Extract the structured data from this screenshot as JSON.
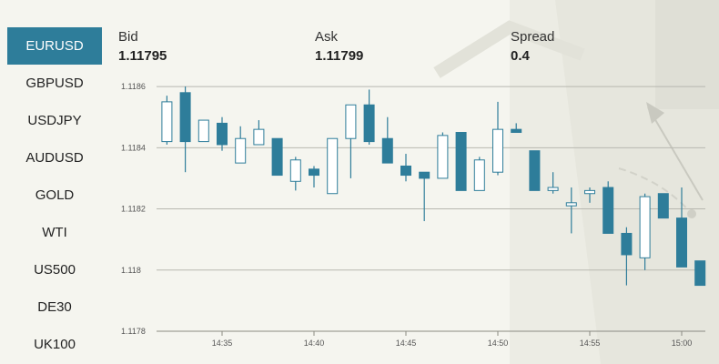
{
  "symbols": [
    {
      "label": "EURUSD",
      "active": true
    },
    {
      "label": "GBPUSD",
      "active": false
    },
    {
      "label": "USDJPY",
      "active": false
    },
    {
      "label": "AUDUSD",
      "active": false
    },
    {
      "label": "GOLD",
      "active": false
    },
    {
      "label": "WTI",
      "active": false
    },
    {
      "label": "US500",
      "active": false
    },
    {
      "label": "DE30",
      "active": false
    },
    {
      "label": "UK100",
      "active": false
    }
  ],
  "quote": {
    "bid_label": "Bid",
    "bid_value": "1.11795",
    "ask_label": "Ask",
    "ask_value": "1.11799",
    "spread_label": "Spread",
    "spread_value": "0.4"
  },
  "colors": {
    "accent": "#2e7d9a",
    "bullish_fill": "#ffffff",
    "bearish_fill": "#2e7d9a",
    "grid": "#b8b8b0"
  },
  "chart_data": {
    "type": "candlestick",
    "title": "",
    "y_ticks": [
      1.1178,
      1.118,
      1.1182,
      1.1184,
      1.1186
    ],
    "y_tick_labels": [
      "1.1178",
      "1.118",
      "1.1182",
      "1.1184",
      "1.1186"
    ],
    "ylim": [
      1.1178,
      1.11863
    ],
    "x_ticks": [
      "14:35",
      "14:40",
      "14:45",
      "14:50",
      "14:55",
      "15:00"
    ],
    "x_range_minutes": [
      "14:31",
      "15:01"
    ],
    "candles": [
      {
        "t": "14:32",
        "o": 1.11842,
        "h": 1.11857,
        "l": 1.11841,
        "c": 1.11855
      },
      {
        "t": "14:33",
        "o": 1.11858,
        "h": 1.1186,
        "l": 1.11832,
        "c": 1.11842
      },
      {
        "t": "14:34",
        "o": 1.11842,
        "h": 1.11849,
        "l": 1.11842,
        "c": 1.11849
      },
      {
        "t": "14:35",
        "o": 1.11848,
        "h": 1.1185,
        "l": 1.11839,
        "c": 1.11841
      },
      {
        "t": "14:36",
        "o": 1.11835,
        "h": 1.11847,
        "l": 1.11835,
        "c": 1.11843
      },
      {
        "t": "14:37",
        "o": 1.11841,
        "h": 1.11849,
        "l": 1.11841,
        "c": 1.11846
      },
      {
        "t": "14:38",
        "o": 1.11843,
        "h": 1.11843,
        "l": 1.11831,
        "c": 1.11831
      },
      {
        "t": "14:39",
        "o": 1.11829,
        "h": 1.11837,
        "l": 1.11826,
        "c": 1.11836
      },
      {
        "t": "14:40",
        "o": 1.11833,
        "h": 1.11834,
        "l": 1.11827,
        "c": 1.11831
      },
      {
        "t": "14:41",
        "o": 1.11825,
        "h": 1.11843,
        "l": 1.11825,
        "c": 1.11843
      },
      {
        "t": "14:42",
        "o": 1.11843,
        "h": 1.11854,
        "l": 1.1183,
        "c": 1.11854
      },
      {
        "t": "14:43",
        "o": 1.11854,
        "h": 1.11859,
        "l": 1.11841,
        "c": 1.11842
      },
      {
        "t": "14:44",
        "o": 1.11843,
        "h": 1.1185,
        "l": 1.11835,
        "c": 1.11835
      },
      {
        "t": "14:45",
        "o": 1.11834,
        "h": 1.11838,
        "l": 1.11829,
        "c": 1.11831
      },
      {
        "t": "14:46",
        "o": 1.11832,
        "h": 1.11832,
        "l": 1.11816,
        "c": 1.1183
      },
      {
        "t": "14:47",
        "o": 1.1183,
        "h": 1.11845,
        "l": 1.1183,
        "c": 1.11844
      },
      {
        "t": "14:48",
        "o": 1.11845,
        "h": 1.11845,
        "l": 1.11826,
        "c": 1.11826
      },
      {
        "t": "14:49",
        "o": 1.11826,
        "h": 1.11837,
        "l": 1.11826,
        "c": 1.11836
      },
      {
        "t": "14:50",
        "o": 1.11832,
        "h": 1.11855,
        "l": 1.11831,
        "c": 1.11846
      },
      {
        "t": "14:51",
        "o": 1.11846,
        "h": 1.11848,
        "l": 1.11845,
        "c": 1.11845
      },
      {
        "t": "14:52",
        "o": 1.11839,
        "h": 1.11839,
        "l": 1.11826,
        "c": 1.11826
      },
      {
        "t": "14:53",
        "o": 1.11826,
        "h": 1.11832,
        "l": 1.11825,
        "c": 1.11827
      },
      {
        "t": "14:54",
        "o": 1.11821,
        "h": 1.11827,
        "l": 1.11812,
        "c": 1.11822
      },
      {
        "t": "14:55",
        "o": 1.11825,
        "h": 1.11827,
        "l": 1.11822,
        "c": 1.11826
      },
      {
        "t": "14:56",
        "o": 1.11827,
        "h": 1.11829,
        "l": 1.11812,
        "c": 1.11812
      },
      {
        "t": "14:57",
        "o": 1.11812,
        "h": 1.11814,
        "l": 1.11795,
        "c": 1.11805
      },
      {
        "t": "14:58",
        "o": 1.11804,
        "h": 1.11825,
        "l": 1.118,
        "c": 1.11824
      },
      {
        "t": "14:59",
        "o": 1.11825,
        "h": 1.11825,
        "l": 1.11817,
        "c": 1.11817
      },
      {
        "t": "15:00",
        "o": 1.11817,
        "h": 1.11827,
        "l": 1.11801,
        "c": 1.11801
      },
      {
        "t": "15:01",
        "o": 1.11803,
        "h": 1.11803,
        "l": 1.11795,
        "c": 1.11795
      }
    ]
  }
}
